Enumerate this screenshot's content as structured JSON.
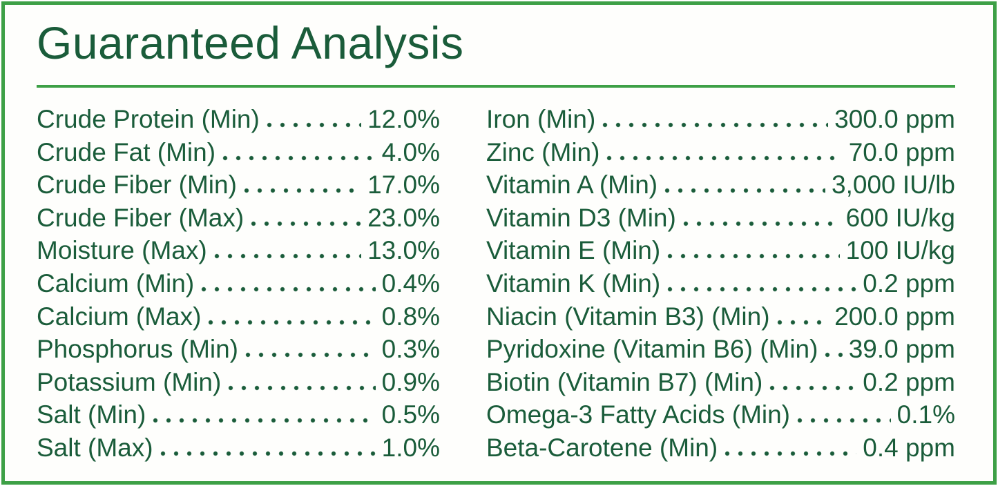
{
  "title": "Guaranteed Analysis",
  "colors": {
    "text_green": "#1a5c3a",
    "border_green": "#3da046",
    "background": "#fefefc"
  },
  "columns": {
    "left": [
      {
        "label": "Crude Protein (Min)",
        "value": "12.0%"
      },
      {
        "label": "Crude Fat (Min)",
        "value": "4.0%"
      },
      {
        "label": "Crude Fiber (Min)",
        "value": "17.0%"
      },
      {
        "label": "Crude Fiber (Max)",
        "value": "23.0%"
      },
      {
        "label": "Moisture (Max)",
        "value": "13.0%"
      },
      {
        "label": "Calcium (Min)",
        "value": "0.4%"
      },
      {
        "label": "Calcium (Max)",
        "value": "0.8%"
      },
      {
        "label": "Phosphorus (Min)",
        "value": "0.3%"
      },
      {
        "label": "Potassium (Min)",
        "value": "0.9%"
      },
      {
        "label": "Salt (Min)",
        "value": "0.5%"
      },
      {
        "label": "Salt (Max)",
        "value": "1.0%"
      }
    ],
    "right": [
      {
        "label": "Iron (Min)",
        "value": "300.0 ppm"
      },
      {
        "label": "Zinc (Min)",
        "value": "70.0 ppm"
      },
      {
        "label": "Vitamin A (Min)",
        "value": "3,000 IU/lb"
      },
      {
        "label": "Vitamin D3 (Min)",
        "value": "600 IU/kg"
      },
      {
        "label": "Vitamin E (Min)",
        "value": "100 IU/kg"
      },
      {
        "label": "Vitamin K (Min)",
        "value": "0.2 ppm"
      },
      {
        "label": "Niacin (Vitamin B3) (Min)",
        "value": "200.0 ppm"
      },
      {
        "label": "Pyridoxine (Vitamin B6) (Min)",
        "value": "39.0 ppm"
      },
      {
        "label": "Biotin (Vitamin B7) (Min)",
        "value": "0.2 ppm"
      },
      {
        "label": "Omega-3 Fatty Acids (Min)",
        "value": "0.1%"
      },
      {
        "label": "Beta-Carotene (Min)",
        "value": "0.4 ppm"
      }
    ]
  }
}
